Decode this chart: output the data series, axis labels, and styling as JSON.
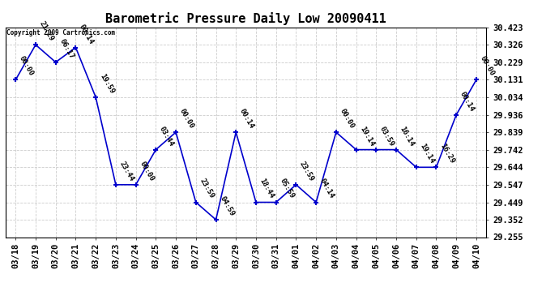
{
  "title": "Barometric Pressure Daily Low 20090411",
  "copyright": "Copyright 2009 Cartronics.com",
  "x_labels": [
    "03/18",
    "03/19",
    "03/20",
    "03/21",
    "03/22",
    "03/23",
    "03/24",
    "03/25",
    "03/26",
    "03/27",
    "03/28",
    "03/29",
    "03/30",
    "03/31",
    "04/01",
    "04/02",
    "04/03",
    "04/04",
    "04/05",
    "04/06",
    "04/07",
    "04/08",
    "04/09",
    "04/10"
  ],
  "y_values": [
    30.131,
    30.326,
    30.229,
    30.311,
    30.034,
    29.547,
    29.547,
    29.742,
    29.839,
    29.449,
    29.352,
    29.839,
    29.449,
    29.449,
    29.547,
    29.449,
    29.839,
    29.742,
    29.742,
    29.742,
    29.644,
    29.644,
    29.936,
    30.131
  ],
  "point_labels": [
    "00:00",
    "21:29",
    "06:17",
    "00:14",
    "19:59",
    "23:44",
    "00:00",
    "03:44",
    "00:00",
    "23:59",
    "04:59",
    "00:14",
    "18:44",
    "05:59",
    "23:59",
    "04:14",
    "00:00",
    "19:14",
    "03:59",
    "16:14",
    "19:14",
    "16:29",
    "00:14",
    "00:00"
  ],
  "line_color": "#0000cc",
  "marker_color": "#0000cc",
  "bg_color": "#ffffff",
  "grid_color": "#cccccc",
  "ylim_min": 29.255,
  "ylim_max": 30.423,
  "yticks": [
    29.255,
    29.352,
    29.449,
    29.547,
    29.644,
    29.742,
    29.839,
    29.936,
    30.034,
    30.131,
    30.229,
    30.326,
    30.423
  ],
  "title_fontsize": 11,
  "label_fontsize": 6.5,
  "tick_fontsize": 7.5
}
